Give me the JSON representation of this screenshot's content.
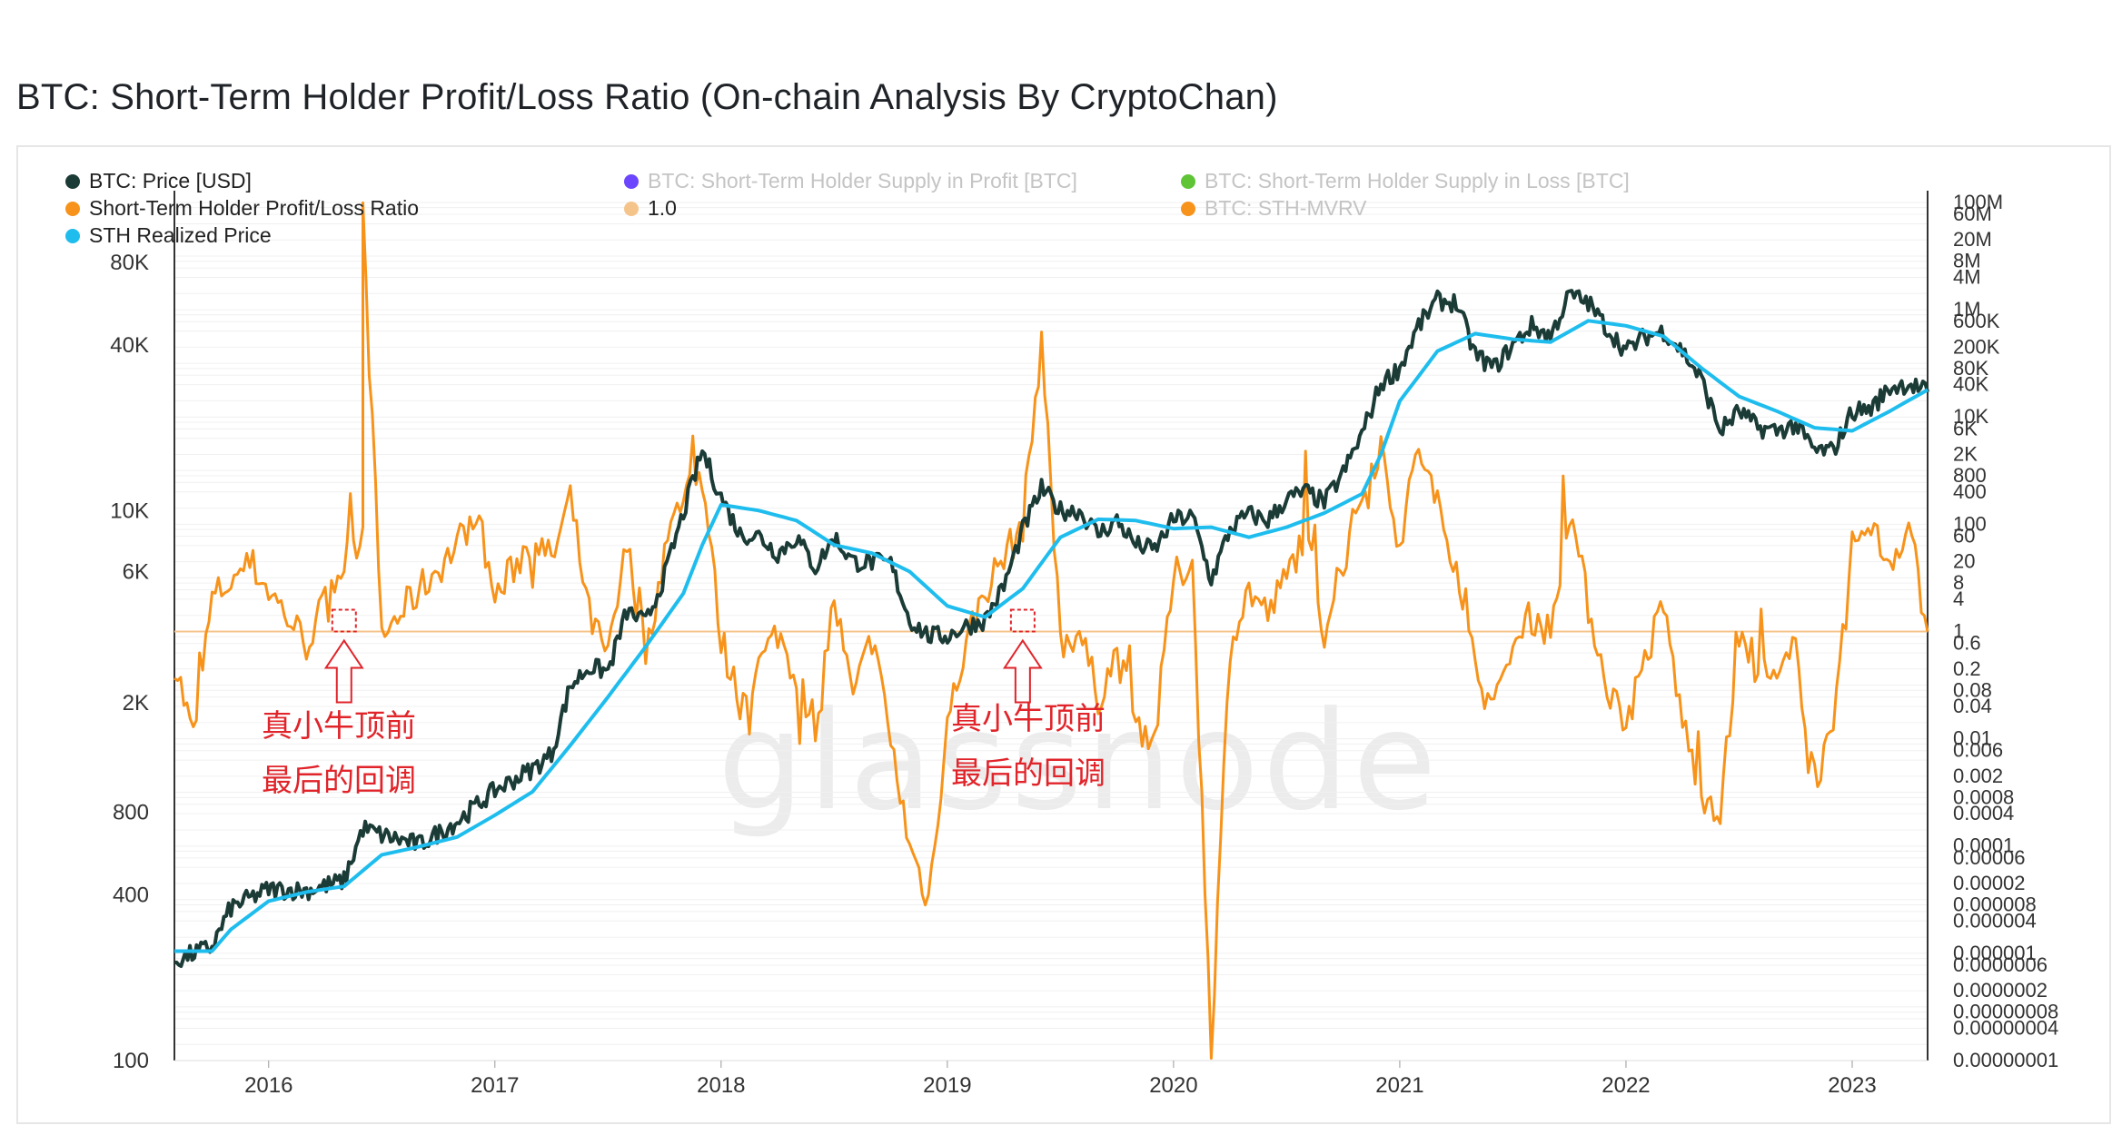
{
  "page": {
    "title": "BTC: Short-Term Holder Profit/Loss Ratio (On-chain Analysis By CryptoChan)"
  },
  "watermark": "glassnode",
  "legend": [
    {
      "label": "BTC: Price [USD]",
      "color": "#1b3b36",
      "active": true
    },
    {
      "label": "Short-Term Holder Profit/Loss Ratio",
      "color": "#f7931a",
      "active": true
    },
    {
      "label": "STH Realized Price",
      "color": "#1ebdee",
      "active": true
    },
    {
      "label": "BTC: Short-Term Holder Supply in Profit [BTC]",
      "color": "#6b46fe",
      "active": false
    },
    {
      "label": "1.0",
      "color": "#f5c48b",
      "active": true
    },
    {
      "label": "BTC: Short-Term Holder Supply in Loss [BTC]",
      "color": "#60c437",
      "active": false
    },
    {
      "label": "BTC: STH-MVRV",
      "color": "#f7931a",
      "active": false
    }
  ],
  "annotations": [
    {
      "line1": "真小牛顶前",
      "line2": "最后的回调"
    },
    {
      "line1": "真小牛顶前",
      "line2": "最后的回调"
    }
  ],
  "chart_data": {
    "type": "line",
    "x_axis": {
      "ticks": [
        "2016",
        "2017",
        "2018",
        "2019",
        "2020",
        "2021",
        "2022",
        "2023"
      ],
      "range": [
        "2015-08",
        "2023-05"
      ]
    },
    "left_axis": {
      "scale": "log",
      "ticks": [
        "80K",
        "40K",
        "10K",
        "6K",
        "2K",
        "800",
        "400",
        "100"
      ]
    },
    "right_axis": {
      "scale": "log",
      "ticks": [
        "100M",
        "60M",
        "20M",
        "8M",
        "4M",
        "1M",
        "600K",
        "200K",
        "80K",
        "40K",
        "10K",
        "6K",
        "2K",
        "800",
        "400",
        "100",
        "60",
        "20",
        "8",
        "4",
        "1",
        "0.6",
        "0.2",
        "0.08",
        "0.04",
        "0.01",
        "0.006",
        "0.002",
        "0.0008",
        "0.0004",
        "0.0001",
        "0.00006",
        "0.00002",
        "0.000008",
        "0.000004",
        "0.000001",
        "0.0000006",
        "0.0000002",
        "0.00000008",
        "0.00000004",
        "0.00000001"
      ]
    },
    "reference_line": {
      "label": "1.0",
      "value": 1.0
    },
    "series": [
      {
        "name": "BTC: Price [USD]",
        "axis": "left",
        "color": "#1b3b36",
        "points": [
          [
            "2015-08",
            230
          ],
          [
            "2015-10",
            260
          ],
          [
            "2015-11",
            360
          ],
          [
            "2016-01",
            420
          ],
          [
            "2016-03",
            415
          ],
          [
            "2016-05",
            450
          ],
          [
            "2016-06",
            700
          ],
          [
            "2016-07",
            660
          ],
          [
            "2016-09",
            610
          ],
          [
            "2016-11",
            740
          ],
          [
            "2017-01",
            960
          ],
          [
            "2017-02",
            1050
          ],
          [
            "2017-03",
            1150
          ],
          [
            "2017-04",
            1300
          ],
          [
            "2017-05",
            2300
          ],
          [
            "2017-06",
            2700
          ],
          [
            "2017-07",
            2600
          ],
          [
            "2017-08",
            4300
          ],
          [
            "2017-09",
            3900
          ],
          [
            "2017-10",
            5800
          ],
          [
            "2017-11",
            9800
          ],
          [
            "2017-12",
            16500
          ],
          [
            "2018-01",
            11200
          ],
          [
            "2018-02",
            8200
          ],
          [
            "2018-03",
            8100
          ],
          [
            "2018-04",
            7000
          ],
          [
            "2018-05",
            8000
          ],
          [
            "2018-06",
            6200
          ],
          [
            "2018-07",
            8000
          ],
          [
            "2018-08",
            6500
          ],
          [
            "2018-09",
            6500
          ],
          [
            "2018-10",
            6400
          ],
          [
            "2018-11",
            4000
          ],
          [
            "2018-12",
            3500
          ],
          [
            "2019-01",
            3500
          ],
          [
            "2019-02",
            3800
          ],
          [
            "2019-03",
            4000
          ],
          [
            "2019-04",
            5300
          ],
          [
            "2019-05",
            8500
          ],
          [
            "2019-06",
            12000
          ],
          [
            "2019-07",
            10000
          ],
          [
            "2019-08",
            10000
          ],
          [
            "2019-09",
            8200
          ],
          [
            "2019-10",
            9200
          ],
          [
            "2019-11",
            7500
          ],
          [
            "2019-12",
            7200
          ],
          [
            "2020-01",
            9300
          ],
          [
            "2020-02",
            9500
          ],
          [
            "2020-03",
            5600
          ],
          [
            "2020-04",
            8600
          ],
          [
            "2020-05",
            9700
          ],
          [
            "2020-06",
            9200
          ],
          [
            "2020-07",
            11000
          ],
          [
            "2020-08",
            11700
          ],
          [
            "2020-09",
            10700
          ],
          [
            "2020-10",
            13700
          ],
          [
            "2020-11",
            19000
          ],
          [
            "2020-12",
            29000
          ],
          [
            "2021-01",
            33000
          ],
          [
            "2021-02",
            47000
          ],
          [
            "2021-03",
            58000
          ],
          [
            "2021-04",
            57000
          ],
          [
            "2021-05",
            37000
          ],
          [
            "2021-06",
            33000
          ],
          [
            "2021-07",
            40000
          ],
          [
            "2021-08",
            47000
          ],
          [
            "2021-09",
            43000
          ],
          [
            "2021-10",
            61000
          ],
          [
            "2021-11",
            57000
          ],
          [
            "2021-12",
            46000
          ],
          [
            "2022-01",
            38000
          ],
          [
            "2022-02",
            43000
          ],
          [
            "2022-03",
            45000
          ],
          [
            "2022-04",
            38000
          ],
          [
            "2022-05",
            30000
          ],
          [
            "2022-06",
            19500
          ],
          [
            "2022-07",
            23000
          ],
          [
            "2022-08",
            20000
          ],
          [
            "2022-09",
            19500
          ],
          [
            "2022-10",
            20500
          ],
          [
            "2022-11",
            16500
          ],
          [
            "2022-12",
            16500
          ],
          [
            "2023-01",
            23000
          ],
          [
            "2023-02",
            23500
          ],
          [
            "2023-03",
            28000
          ],
          [
            "2023-04",
            29000
          ],
          [
            "2023-05",
            27000
          ]
        ]
      },
      {
        "name": "STH Realized Price",
        "axis": "left",
        "color": "#1ebdee",
        "points": [
          [
            "2015-08",
            250
          ],
          [
            "2015-10",
            250
          ],
          [
            "2015-11",
            300
          ],
          [
            "2016-01",
            380
          ],
          [
            "2016-03",
            410
          ],
          [
            "2016-05",
            430
          ],
          [
            "2016-07",
            560
          ],
          [
            "2016-09",
            600
          ],
          [
            "2016-11",
            650
          ],
          [
            "2017-01",
            780
          ],
          [
            "2017-03",
            950
          ],
          [
            "2017-05",
            1400
          ],
          [
            "2017-07",
            2100
          ],
          [
            "2017-09",
            3200
          ],
          [
            "2017-11",
            5000
          ],
          [
            "2017-12",
            7500
          ],
          [
            "2018-01",
            10500
          ],
          [
            "2018-03",
            10000
          ],
          [
            "2018-05",
            9200
          ],
          [
            "2018-07",
            7500
          ],
          [
            "2018-09",
            7000
          ],
          [
            "2018-11",
            6000
          ],
          [
            "2019-01",
            4500
          ],
          [
            "2019-03",
            4100
          ],
          [
            "2019-05",
            5200
          ],
          [
            "2019-07",
            8000
          ],
          [
            "2019-09",
            9300
          ],
          [
            "2019-11",
            9200
          ],
          [
            "2020-01",
            8600
          ],
          [
            "2020-03",
            8700
          ],
          [
            "2020-05",
            8000
          ],
          [
            "2020-07",
            8700
          ],
          [
            "2020-09",
            9800
          ],
          [
            "2020-11",
            11500
          ],
          [
            "2020-12",
            16000
          ],
          [
            "2021-01",
            25000
          ],
          [
            "2021-03",
            38000
          ],
          [
            "2021-05",
            44000
          ],
          [
            "2021-07",
            42000
          ],
          [
            "2021-09",
            41000
          ],
          [
            "2021-11",
            49000
          ],
          [
            "2022-01",
            47000
          ],
          [
            "2022-03",
            43000
          ],
          [
            "2022-05",
            33000
          ],
          [
            "2022-07",
            26000
          ],
          [
            "2022-09",
            23000
          ],
          [
            "2022-11",
            20000
          ],
          [
            "2023-01",
            19500
          ],
          [
            "2023-03",
            23000
          ],
          [
            "2023-05",
            27500
          ]
        ]
      },
      {
        "name": "Short-Term Holder Profit/Loss Ratio",
        "axis": "right",
        "color": "#f7931a",
        "points": [
          [
            "2015-08",
            0.3
          ],
          [
            "2015-09",
            0.01
          ],
          [
            "2015-10",
            4
          ],
          [
            "2015-12",
            20
          ],
          [
            "2016-01",
            6
          ],
          [
            "2016-03",
            0.6
          ],
          [
            "2016-05",
            20
          ],
          [
            "2016-06",
            80
          ],
          [
            "2016-06",
            50000000
          ],
          [
            "2016-07",
            0.8
          ],
          [
            "2016-09",
            6
          ],
          [
            "2016-11",
            40
          ],
          [
            "2016-12",
            200
          ],
          [
            "2017-01",
            4
          ],
          [
            "2017-03",
            60
          ],
          [
            "2017-04",
            20
          ],
          [
            "2017-05",
            300
          ],
          [
            "2017-06",
            2
          ],
          [
            "2017-07",
            0.3
          ],
          [
            "2017-08",
            40
          ],
          [
            "2017-09",
            0.4
          ],
          [
            "2017-10",
            30
          ],
          [
            "2017-11",
            400
          ],
          [
            "2017-12",
            800
          ],
          [
            "2018-01",
            0.7
          ],
          [
            "2018-02",
            0.05
          ],
          [
            "2018-04",
            1
          ],
          [
            "2018-06",
            0.02
          ],
          [
            "2018-07",
            4
          ],
          [
            "2018-08",
            0.05
          ],
          [
            "2018-09",
            0.8
          ],
          [
            "2018-11",
            0.0001
          ],
          [
            "2018-12",
            1e-05
          ],
          [
            "2019-01",
            0.02
          ],
          [
            "2019-02",
            0.6
          ],
          [
            "2019-03",
            6
          ],
          [
            "2019-05",
            100
          ],
          [
            "2019-06",
            300000
          ],
          [
            "2019-07",
            0.6
          ],
          [
            "2019-08",
            1
          ],
          [
            "2019-09",
            0.06
          ],
          [
            "2019-10",
            0.4
          ],
          [
            "2019-11",
            0.02
          ],
          [
            "2019-12",
            0.01
          ],
          [
            "2020-01",
            10
          ],
          [
            "2020-02",
            20
          ],
          [
            "2020-03",
            2e-08
          ],
          [
            "2020-04",
            0.6
          ],
          [
            "2020-05",
            6
          ],
          [
            "2020-06",
            2
          ],
          [
            "2020-07",
            10
          ],
          [
            "2020-08",
            80
          ],
          [
            "2020-09",
            1
          ],
          [
            "2020-10",
            20
          ],
          [
            "2020-11",
            400
          ],
          [
            "2020-12",
            3000
          ],
          [
            "2021-01",
            40
          ],
          [
            "2021-02",
            3000
          ],
          [
            "2021-03",
            200
          ],
          [
            "2021-04",
            20
          ],
          [
            "2021-05",
            0.2
          ],
          [
            "2021-06",
            0.03
          ],
          [
            "2021-07",
            0.5
          ],
          [
            "2021-08",
            2
          ],
          [
            "2021-09",
            1
          ],
          [
            "2021-10",
            200
          ],
          [
            "2021-11",
            3
          ],
          [
            "2021-12",
            0.1
          ],
          [
            "2022-01",
            0.02
          ],
          [
            "2022-02",
            0.3
          ],
          [
            "2022-03",
            3
          ],
          [
            "2022-04",
            0.02
          ],
          [
            "2022-05",
            0.001
          ],
          [
            "2022-06",
            0.0005
          ],
          [
            "2022-07",
            0.6
          ],
          [
            "2022-08",
            0.2
          ],
          [
            "2022-09",
            0.1
          ],
          [
            "2022-10",
            0.5
          ],
          [
            "2022-11",
            0.002
          ],
          [
            "2022-12",
            0.01
          ],
          [
            "2023-01",
            40
          ],
          [
            "2023-02",
            80
          ],
          [
            "2023-03",
            20
          ],
          [
            "2023-04",
            100
          ],
          [
            "2023-05",
            1
          ]
        ]
      }
    ]
  }
}
